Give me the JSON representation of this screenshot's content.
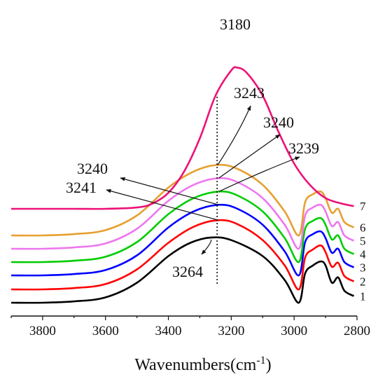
{
  "chart_data": {
    "type": "line",
    "xlabel": "Wavenumbers",
    "xlabel_unit": "(cm",
    "xlabel_sup": "-1",
    "xlabel_close": ")",
    "xlim": [
      3900,
      2800
    ],
    "x_ticks": [
      "3800",
      "3600",
      "3400",
      "3200",
      "3000",
      "2800"
    ],
    "y_axis_visible": false,
    "legend": "inline labels at right end of each curve",
    "reference_line": {
      "x": 3245,
      "style": "dotted"
    },
    "series": [
      {
        "name": "1",
        "color": "#000000",
        "points": [
          [
            3900,
            0.0
          ],
          [
            3800,
            0.0
          ],
          [
            3700,
            0.01
          ],
          [
            3600,
            0.04
          ],
          [
            3500,
            0.15
          ],
          [
            3400,
            0.35
          ],
          [
            3330,
            0.45
          ],
          [
            3264,
            0.49
          ],
          [
            3200,
            0.47
          ],
          [
            3100,
            0.35
          ],
          [
            3030,
            0.17
          ],
          [
            2985,
            0.0
          ],
          [
            2965,
            0.22
          ],
          [
            2940,
            0.28
          ],
          [
            2915,
            0.31
          ],
          [
            2900,
            0.28
          ],
          [
            2880,
            0.15
          ],
          [
            2860,
            0.19
          ],
          [
            2840,
            0.09
          ],
          [
            2810,
            0.05
          ]
        ]
      },
      {
        "name": "2",
        "color": "#ff0000",
        "points": [
          [
            3900,
            0.0
          ],
          [
            3800,
            0.0
          ],
          [
            3700,
            0.01
          ],
          [
            3600,
            0.04
          ],
          [
            3500,
            0.15
          ],
          [
            3400,
            0.35
          ],
          [
            3320,
            0.47
          ],
          [
            3241,
            0.52
          ],
          [
            3180,
            0.49
          ],
          [
            3100,
            0.37
          ],
          [
            3030,
            0.18
          ],
          [
            2985,
            0.0
          ],
          [
            2965,
            0.24
          ],
          [
            2940,
            0.3
          ],
          [
            2915,
            0.33
          ],
          [
            2900,
            0.28
          ],
          [
            2880,
            0.17
          ],
          [
            2860,
            0.2
          ],
          [
            2840,
            0.1
          ],
          [
            2810,
            0.06
          ]
        ]
      },
      {
        "name": "3",
        "color": "#0000ff",
        "points": [
          [
            3900,
            0.0
          ],
          [
            3800,
            0.0
          ],
          [
            3700,
            0.01
          ],
          [
            3600,
            0.04
          ],
          [
            3500,
            0.15
          ],
          [
            3400,
            0.36
          ],
          [
            3320,
            0.48
          ],
          [
            3240,
            0.53
          ],
          [
            3180,
            0.5
          ],
          [
            3100,
            0.38
          ],
          [
            3030,
            0.18
          ],
          [
            2985,
            0.0
          ],
          [
            2965,
            0.25
          ],
          [
            2940,
            0.31
          ],
          [
            2915,
            0.33
          ],
          [
            2900,
            0.28
          ],
          [
            2880,
            0.17
          ],
          [
            2860,
            0.2
          ],
          [
            2840,
            0.1
          ],
          [
            2810,
            0.06
          ]
        ]
      },
      {
        "name": "4",
        "color": "#00cc00",
        "points": [
          [
            3900,
            0.0
          ],
          [
            3800,
            0.0
          ],
          [
            3700,
            0.01
          ],
          [
            3600,
            0.04
          ],
          [
            3500,
            0.15
          ],
          [
            3400,
            0.36
          ],
          [
            3320,
            0.48
          ],
          [
            3239,
            0.53
          ],
          [
            3180,
            0.5
          ],
          [
            3100,
            0.38
          ],
          [
            3030,
            0.18
          ],
          [
            2985,
            0.0
          ],
          [
            2965,
            0.25
          ],
          [
            2940,
            0.31
          ],
          [
            2915,
            0.33
          ],
          [
            2900,
            0.28
          ],
          [
            2880,
            0.17
          ],
          [
            2860,
            0.2
          ],
          [
            2840,
            0.1
          ],
          [
            2810,
            0.06
          ]
        ]
      },
      {
        "name": "5",
        "color": "#ee77ee",
        "points": [
          [
            3900,
            0.0
          ],
          [
            3800,
            0.0
          ],
          [
            3700,
            0.01
          ],
          [
            3600,
            0.04
          ],
          [
            3500,
            0.15
          ],
          [
            3400,
            0.36
          ],
          [
            3320,
            0.48
          ],
          [
            3240,
            0.53
          ],
          [
            3180,
            0.5
          ],
          [
            3100,
            0.38
          ],
          [
            3030,
            0.18
          ],
          [
            2985,
            0.0
          ],
          [
            2965,
            0.25
          ],
          [
            2940,
            0.31
          ],
          [
            2915,
            0.33
          ],
          [
            2900,
            0.28
          ],
          [
            2880,
            0.17
          ],
          [
            2860,
            0.2
          ],
          [
            2840,
            0.1
          ],
          [
            2810,
            0.06
          ]
        ]
      },
      {
        "name": "6",
        "color": "#e6a030",
        "points": [
          [
            3900,
            0.0
          ],
          [
            3800,
            0.0
          ],
          [
            3700,
            0.01
          ],
          [
            3600,
            0.04
          ],
          [
            3500,
            0.15
          ],
          [
            3400,
            0.36
          ],
          [
            3320,
            0.48
          ],
          [
            3243,
            0.53
          ],
          [
            3180,
            0.5
          ],
          [
            3100,
            0.38
          ],
          [
            3030,
            0.18
          ],
          [
            2985,
            0.0
          ],
          [
            2965,
            0.25
          ],
          [
            2940,
            0.31
          ],
          [
            2915,
            0.33
          ],
          [
            2900,
            0.28
          ],
          [
            2880,
            0.17
          ],
          [
            2860,
            0.2
          ],
          [
            2840,
            0.1
          ],
          [
            2810,
            0.06
          ]
        ]
      },
      {
        "name": "7",
        "color": "#ee1177",
        "points": [
          [
            3900,
            0.0
          ],
          [
            3800,
            0.0
          ],
          [
            3700,
            0.0
          ],
          [
            3600,
            0.0
          ],
          [
            3500,
            0.01
          ],
          [
            3450,
            0.04
          ],
          [
            3400,
            0.12
          ],
          [
            3350,
            0.28
          ],
          [
            3300,
            0.53
          ],
          [
            3250,
            0.85
          ],
          [
            3200,
            1.04
          ],
          [
            3180,
            1.06
          ],
          [
            3150,
            1.02
          ],
          [
            3100,
            0.85
          ],
          [
            3050,
            0.58
          ],
          [
            3000,
            0.34
          ],
          [
            2950,
            0.18
          ],
          [
            2900,
            0.08
          ],
          [
            2850,
            0.04
          ],
          [
            2810,
            0.02
          ]
        ]
      }
    ],
    "annotations": [
      {
        "text": "3180",
        "series": "7",
        "x": 3180
      },
      {
        "text": "3243",
        "series": "6",
        "x": 3243
      },
      {
        "text": "3240",
        "series": "5",
        "x": 3240
      },
      {
        "text": "3239",
        "series": "4",
        "x": 3239
      },
      {
        "text": "3240",
        "series": "3",
        "x": 3240
      },
      {
        "text": "3241",
        "series": "2",
        "x": 3241
      },
      {
        "text": "3264",
        "series": "1",
        "x": 3264
      }
    ]
  }
}
